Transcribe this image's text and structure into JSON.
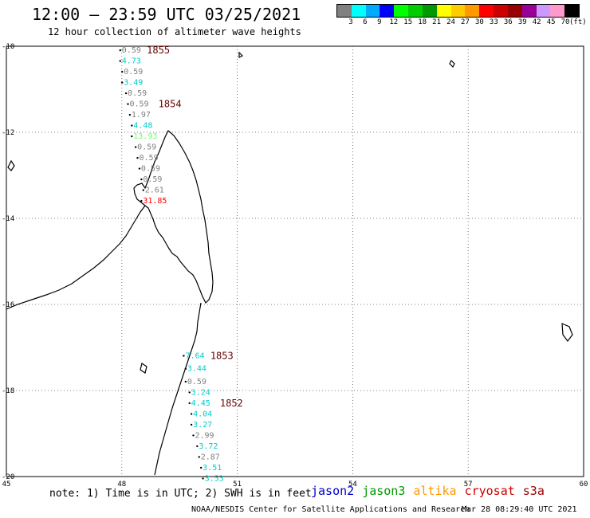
{
  "header": {
    "title": "12:00 – 23:59 UTC 03/25/2021",
    "subtitle": "12 hour collection of altimeter wave heights"
  },
  "legend": {
    "unit": "(ft)",
    "bins": [
      {
        "label": "3",
        "color": "#808080"
      },
      {
        "label": "6",
        "color": "#00ffff"
      },
      {
        "label": "9",
        "color": "#00aaff"
      },
      {
        "label": "12",
        "color": "#0000ff"
      },
      {
        "label": "15",
        "color": "#00ff00"
      },
      {
        "label": "18",
        "color": "#00cc00"
      },
      {
        "label": "21",
        "color": "#009900"
      },
      {
        "label": "24",
        "color": "#ffff00"
      },
      {
        "label": "27",
        "color": "#ffcc00"
      },
      {
        "label": "30",
        "color": "#ff9900"
      },
      {
        "label": "33",
        "color": "#ff0000"
      },
      {
        "label": "36",
        "color": "#cc0000"
      },
      {
        "label": "39",
        "color": "#990000"
      },
      {
        "label": "42",
        "color": "#990099"
      },
      {
        "label": "45",
        "color": "#cc99ff"
      },
      {
        "label": "70",
        "color": "#ff99cc"
      },
      {
        "label": "",
        "color": "#000000"
      }
    ]
  },
  "axes": {
    "lon_labels": [
      "45",
      "48",
      "51",
      "54",
      "57",
      "60"
    ],
    "lat_labels": [
      "-10",
      "-12",
      "-14",
      "-16",
      "-18",
      "-20"
    ]
  },
  "observations": [
    {
      "v": "0.59",
      "lon": 48.0,
      "lat": -10.15,
      "color": "#808080"
    },
    {
      "v": "4.73",
      "lon": 48.0,
      "lat": -10.4,
      "color": "#00cccc"
    },
    {
      "v": "0.59",
      "lon": 48.05,
      "lat": -10.65,
      "color": "#808080"
    },
    {
      "v": "3.49",
      "lon": 48.05,
      "lat": -10.9,
      "color": "#00cccc"
    },
    {
      "v": "0.59",
      "lon": 48.15,
      "lat": -11.15,
      "color": "#808080"
    },
    {
      "v": "0.59",
      "lon": 48.2,
      "lat": -11.4,
      "color": "#808080"
    },
    {
      "v": "1.97",
      "lon": 48.25,
      "lat": -11.65,
      "color": "#808080"
    },
    {
      "v": "4.48",
      "lon": 48.3,
      "lat": -11.9,
      "color": "#00cccc"
    },
    {
      "v": "13.93",
      "lon": 48.3,
      "lat": -12.15,
      "color": "#66ff66"
    },
    {
      "v": "0.59",
      "lon": 48.4,
      "lat": -12.4,
      "color": "#808080"
    },
    {
      "v": "0.59",
      "lon": 48.45,
      "lat": -12.65,
      "color": "#808080"
    },
    {
      "v": "0.59",
      "lon": 48.5,
      "lat": -12.9,
      "color": "#808080"
    },
    {
      "v": "0.59",
      "lon": 48.55,
      "lat": -13.15,
      "color": "#808080"
    },
    {
      "v": "2.61",
      "lon": 48.6,
      "lat": -13.4,
      "color": "#808080"
    },
    {
      "v": "31.85",
      "lon": 48.55,
      "lat": -13.65,
      "color": "#ff0000"
    },
    {
      "v": "7.64",
      "lon": 49.65,
      "lat": -17.25,
      "color": "#00cccc"
    },
    {
      "v": "3.44",
      "lon": 49.7,
      "lat": -17.55,
      "color": "#00cccc"
    },
    {
      "v": "0.59",
      "lon": 49.7,
      "lat": -17.85,
      "color": "#808080"
    },
    {
      "v": "3.24",
      "lon": 49.8,
      "lat": -18.1,
      "color": "#00cccc"
    },
    {
      "v": "4.45",
      "lon": 49.8,
      "lat": -18.35,
      "color": "#00cccc"
    },
    {
      "v": "4.04",
      "lon": 49.85,
      "lat": -18.6,
      "color": "#00cccc"
    },
    {
      "v": "3.27",
      "lon": 49.85,
      "lat": -18.85,
      "color": "#00cccc"
    },
    {
      "v": "2.99",
      "lon": 49.9,
      "lat": -19.1,
      "color": "#808080"
    },
    {
      "v": "3.72",
      "lon": 50.0,
      "lat": -19.35,
      "color": "#00cccc"
    },
    {
      "v": "2.87",
      "lon": 50.05,
      "lat": -19.6,
      "color": "#808080"
    },
    {
      "v": "3.51",
      "lon": 50.1,
      "lat": -19.85,
      "color": "#00cccc"
    },
    {
      "v": "3.53",
      "lon": 50.15,
      "lat": -20.1,
      "color": "#00cccc"
    }
  ],
  "pass_times": [
    {
      "t": "1855",
      "lon": 48.65,
      "lat": -10.15
    },
    {
      "t": "1854",
      "lon": 48.95,
      "lat": -11.4
    },
    {
      "t": "1853",
      "lon": 50.3,
      "lat": -17.25
    },
    {
      "t": "1852",
      "lon": 50.55,
      "lat": -18.35
    }
  ],
  "footer": {
    "note": "note: 1) Time is in UTC; 2) SWH is in feet",
    "satellites": [
      {
        "name": "jason2",
        "color": "#0000cc"
      },
      {
        "name": "jason3",
        "color": "#009900"
      },
      {
        "name": "altika",
        "color": "#ff9900"
      },
      {
        "name": "cryosat",
        "color": "#cc0000"
      },
      {
        "name": "s3a",
        "color": "#990000"
      }
    ],
    "credit": "NOAA/NESDIS Center for Satellite Applications and Research",
    "timestamp": "Mar 28 08:29:40 UTC 2021"
  }
}
